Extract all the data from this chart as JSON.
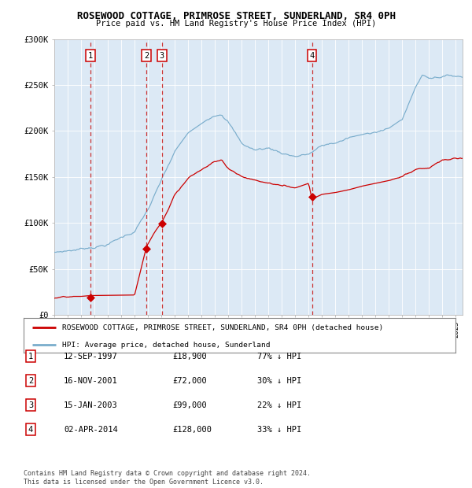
{
  "title": "ROSEWOOD COTTAGE, PRIMROSE STREET, SUNDERLAND, SR4 0PH",
  "subtitle": "Price paid vs. HM Land Registry's House Price Index (HPI)",
  "background_color": "#dce9f5",
  "red_line_color": "#cc0000",
  "blue_line_color": "#7aadcc",
  "ylim": [
    0,
    300000
  ],
  "ytick_labels": [
    "£0",
    "£50K",
    "£100K",
    "£150K",
    "£200K",
    "£250K",
    "£300K"
  ],
  "ytick_values": [
    0,
    50000,
    100000,
    150000,
    200000,
    250000,
    300000
  ],
  "year_start": 1995,
  "year_end": 2025,
  "transactions": [
    {
      "id": 1,
      "date_label": "12-SEP-1997",
      "date_num": 1997.71,
      "price": 18900,
      "label": "1"
    },
    {
      "id": 2,
      "date_label": "16-NOV-2001",
      "date_num": 2001.88,
      "price": 72000,
      "label": "2"
    },
    {
      "id": 3,
      "date_label": "15-JAN-2003",
      "date_num": 2003.04,
      "price": 99000,
      "label": "3"
    },
    {
      "id": 4,
      "date_label": "02-APR-2014",
      "date_num": 2014.25,
      "price": 128000,
      "label": "4"
    }
  ],
  "legend_red_label": "ROSEWOOD COTTAGE, PRIMROSE STREET, SUNDERLAND, SR4 0PH (detached house)",
  "legend_blue_label": "HPI: Average price, detached house, Sunderland",
  "footer_text": "Contains HM Land Registry data © Crown copyright and database right 2024.\nThis data is licensed under the Open Government Licence v3.0.",
  "table_rows": [
    {
      "id": 1,
      "date": "12-SEP-1997",
      "price": "£18,900",
      "pct": "77% ↓ HPI"
    },
    {
      "id": 2,
      "date": "16-NOV-2001",
      "price": "£72,000",
      "pct": "30% ↓ HPI"
    },
    {
      "id": 3,
      "date": "15-JAN-2003",
      "price": "£99,000",
      "pct": "22% ↓ HPI"
    },
    {
      "id": 4,
      "date": "02-APR-2014",
      "price": "£128,000",
      "pct": "33% ↓ HPI"
    }
  ]
}
